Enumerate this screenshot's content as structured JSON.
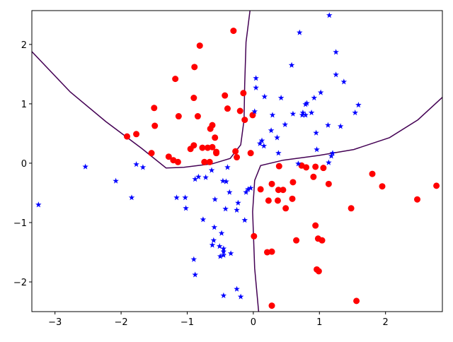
{
  "chart_data": {
    "type": "scatter",
    "title": "",
    "xlabel": "",
    "ylabel": "",
    "xlim": [
      -3.35,
      2.86
    ],
    "ylim": [
      -2.5,
      2.57
    ],
    "grid": false,
    "xticks": [
      -3,
      -2,
      -1,
      0,
      1,
      2
    ],
    "yticks": [
      -2,
      -1,
      0,
      1,
      2
    ],
    "xtick_labels": [
      "−3",
      "−2",
      "−1",
      "0",
      "1",
      "2"
    ],
    "ytick_labels": [
      "−2",
      "−1",
      "0",
      "1",
      "2"
    ],
    "colors": {
      "red": "#ff0000",
      "blue": "#0000ff",
      "contour": "#440154"
    },
    "series": [
      {
        "marker": "circle",
        "color": "#ff0000",
        "points": [
          [
            -0.3,
            2.23
          ],
          [
            -0.81,
            1.98
          ],
          [
            -1.18,
            1.42
          ],
          [
            -0.89,
            1.62
          ],
          [
            -0.9,
            1.1
          ],
          [
            -1.5,
            0.93
          ],
          [
            -1.13,
            0.79
          ],
          [
            -0.84,
            0.79
          ],
          [
            -0.43,
            1.14
          ],
          [
            -0.15,
            1.18
          ],
          [
            -0.39,
            0.92
          ],
          [
            -0.2,
            0.88
          ],
          [
            -0.13,
            0.73
          ],
          [
            -0.01,
            0.81
          ],
          [
            -1.91,
            0.45
          ],
          [
            -1.77,
            0.49
          ],
          [
            -1.49,
            0.63
          ],
          [
            -1.54,
            0.17
          ],
          [
            -1.28,
            0.11
          ],
          [
            -1.21,
            0.05
          ],
          [
            -1.14,
            0.02
          ],
          [
            -0.95,
            0.24
          ],
          [
            -0.9,
            0.3
          ],
          [
            -0.77,
            0.26
          ],
          [
            -0.69,
            0.26
          ],
          [
            -0.62,
            0.27
          ],
          [
            -0.56,
            0.19
          ],
          [
            -0.56,
            0.17
          ],
          [
            -0.58,
            0.43
          ],
          [
            -0.65,
            0.58
          ],
          [
            -0.62,
            0.64
          ],
          [
            -0.74,
            0.02
          ],
          [
            -0.66,
            0.02
          ],
          [
            -0.27,
            0.2
          ],
          [
            -0.25,
            0.1
          ],
          [
            -0.04,
            0.17
          ],
          [
            0.01,
            -1.23
          ],
          [
            0.11,
            -0.44
          ],
          [
            0.39,
            -0.05
          ],
          [
            0.28,
            -0.35
          ],
          [
            0.23,
            -0.63
          ],
          [
            0.37,
            -0.63
          ],
          [
            0.38,
            -0.45
          ],
          [
            0.45,
            -0.45
          ],
          [
            0.49,
            -0.76
          ],
          [
            0.6,
            -0.32
          ],
          [
            0.59,
            -0.6
          ],
          [
            0.65,
            -1.3
          ],
          [
            0.21,
            -1.5
          ],
          [
            0.28,
            -1.49
          ],
          [
            0.28,
            -2.4
          ],
          [
            0.91,
            -0.23
          ],
          [
            0.94,
            -0.06
          ],
          [
            1.06,
            -0.08
          ],
          [
            1.14,
            -0.35
          ],
          [
            0.94,
            -1.05
          ],
          [
            0.98,
            -1.27
          ],
          [
            1.04,
            -1.3
          ],
          [
            0.96,
            -1.79
          ],
          [
            0.99,
            -1.82
          ],
          [
            1.48,
            -0.76
          ],
          [
            1.56,
            -2.32
          ],
          [
            1.8,
            -0.18
          ],
          [
            1.95,
            -0.39
          ],
          [
            2.48,
            -0.61
          ],
          [
            2.77,
            -0.38
          ],
          [
            0.8,
            -0.07
          ],
          [
            0.73,
            -0.04
          ]
        ]
      },
      {
        "marker": "star",
        "color": "#0000ff",
        "points": [
          [
            1.15,
            2.49
          ],
          [
            0.7,
            2.2
          ],
          [
            1.25,
            1.87
          ],
          [
            0.58,
            1.65
          ],
          [
            1.25,
            1.49
          ],
          [
            1.37,
            1.37
          ],
          [
            0.04,
            1.43
          ],
          [
            0.04,
            1.27
          ],
          [
            0.17,
            1.12
          ],
          [
            0.42,
            1.1
          ],
          [
            1.02,
            1.19
          ],
          [
            0.92,
            1.1
          ],
          [
            0.79,
            0.99
          ],
          [
            0.81,
            1.01
          ],
          [
            1.59,
            0.98
          ],
          [
            1.54,
            0.85
          ],
          [
            0.02,
            0.87
          ],
          [
            0.29,
            0.81
          ],
          [
            0.6,
            0.83
          ],
          [
            0.75,
            0.85
          ],
          [
            0.79,
            0.81
          ],
          [
            0.88,
            0.85
          ],
          [
            0.74,
            0.81
          ],
          [
            0.48,
            0.65
          ],
          [
            0.27,
            0.55
          ],
          [
            0.36,
            0.43
          ],
          [
            1.13,
            0.64
          ],
          [
            1.32,
            0.62
          ],
          [
            0.95,
            0.51
          ],
          [
            0.13,
            0.38
          ],
          [
            0.1,
            0.33
          ],
          [
            0.16,
            0.29
          ],
          [
            0.38,
            0.17
          ],
          [
            0.96,
            0.23
          ],
          [
            1.2,
            0.17
          ],
          [
            1.18,
            0.12
          ],
          [
            1.14,
            0.01
          ],
          [
            0.68,
            -0.01
          ],
          [
            -3.25,
            -0.7
          ],
          [
            -2.54,
            -0.06
          ],
          [
            -2.08,
            -0.3
          ],
          [
            -1.77,
            -0.02
          ],
          [
            -1.67,
            -0.07
          ],
          [
            -1.84,
            -0.58
          ],
          [
            -1.16,
            -0.58
          ],
          [
            -1.03,
            -0.58
          ],
          [
            -1.02,
            -0.76
          ],
          [
            -0.83,
            -0.23
          ],
          [
            -0.88,
            -0.27
          ],
          [
            -0.72,
            -0.24
          ],
          [
            -0.63,
            -0.12
          ],
          [
            -0.46,
            -0.3
          ],
          [
            -0.41,
            -0.31
          ],
          [
            -0.39,
            -0.07
          ],
          [
            -0.36,
            -0.49
          ],
          [
            -0.58,
            -0.61
          ],
          [
            -0.23,
            -0.67
          ],
          [
            -0.25,
            -0.79
          ],
          [
            -0.42,
            -0.77
          ],
          [
            -0.11,
            -0.49
          ],
          [
            -0.08,
            -0.44
          ],
          [
            -0.04,
            -0.42
          ],
          [
            -0.13,
            -0.96
          ],
          [
            -0.76,
            -0.95
          ],
          [
            -0.59,
            -1.08
          ],
          [
            -0.48,
            -1.18
          ],
          [
            -0.62,
            -1.38
          ],
          [
            -0.6,
            -1.3
          ],
          [
            -0.51,
            -1.4
          ],
          [
            -0.45,
            -1.44
          ],
          [
            -0.45,
            -1.49
          ],
          [
            -0.5,
            -1.57
          ],
          [
            -0.45,
            -1.55
          ],
          [
            -0.34,
            -1.52
          ],
          [
            -0.9,
            -1.62
          ],
          [
            -0.88,
            -1.88
          ],
          [
            -0.45,
            -2.23
          ],
          [
            -0.25,
            -2.12
          ],
          [
            -0.19,
            -2.25
          ]
        ]
      }
    ],
    "contours": [
      [
        [
          -3.35,
          1.88
        ],
        [
          -2.77,
          1.2
        ],
        [
          -2.23,
          0.7
        ],
        [
          -1.69,
          0.25
        ],
        [
          -1.32,
          -0.08
        ],
        [
          -1.05,
          -0.07
        ],
        [
          -0.62,
          -0.01
        ],
        [
          -0.35,
          0.08
        ],
        [
          -0.19,
          0.31
        ],
        [
          -0.14,
          0.73
        ],
        [
          -0.13,
          1.32
        ],
        [
          -0.11,
          2.04
        ],
        [
          -0.05,
          2.57
        ]
      ],
      [
        [
          0.08,
          -2.5
        ],
        [
          0.02,
          -1.77
        ],
        [
          -0.01,
          -0.82
        ],
        [
          0.02,
          -0.29
        ],
        [
          0.11,
          -0.04
        ],
        [
          0.45,
          0.05
        ],
        [
          0.99,
          0.13
        ],
        [
          1.52,
          0.23
        ],
        [
          2.06,
          0.43
        ],
        [
          2.49,
          0.73
        ],
        [
          2.86,
          1.11
        ]
      ]
    ]
  }
}
